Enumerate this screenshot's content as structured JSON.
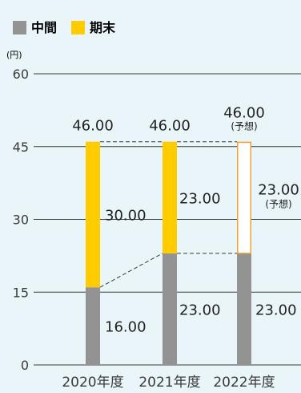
{
  "chart_data": {
    "type": "bar",
    "stacked": true,
    "unit": "(円)",
    "categories": [
      "2020年度",
      "2021年度",
      "2022年度"
    ],
    "series": [
      {
        "name": "中間",
        "color": "#939393",
        "values": [
          16.0,
          23.0,
          23.0
        ],
        "labels": [
          "16.00",
          "23.00",
          "23.00"
        ]
      },
      {
        "name": "期末",
        "color": "#ffcc00",
        "values": [
          30.0,
          23.0,
          23.0
        ],
        "labels": [
          "30.00",
          "23.00",
          "23.00"
        ]
      }
    ],
    "totals": [
      "46.00",
      "46.00",
      "46.00"
    ],
    "forecast": {
      "index": 2,
      "note": "(予想)",
      "outline_color": "#f0a030"
    },
    "ylim": [
      0,
      60
    ],
    "yticks": [
      0,
      15,
      30,
      45,
      60
    ],
    "grid": true,
    "legend_position": "top-left"
  }
}
